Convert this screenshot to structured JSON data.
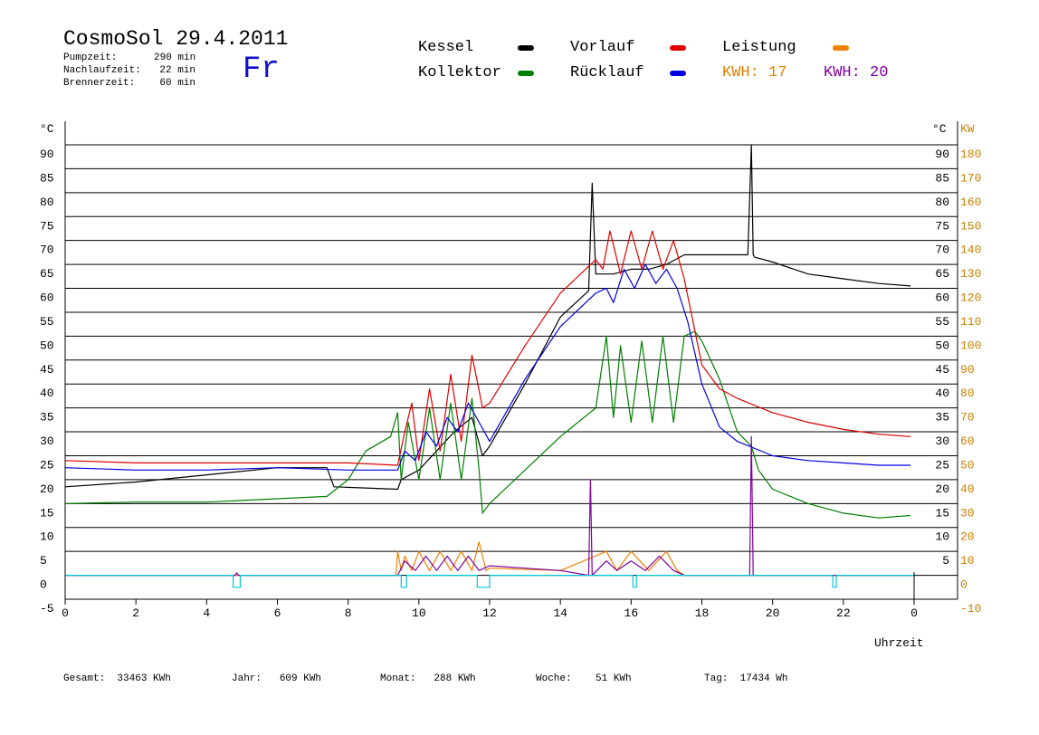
{
  "header": {
    "title": "CosmoSol 29.4.2011",
    "day": "Fr",
    "stats": [
      {
        "label": "Pumpzeit:",
        "value": "290 min"
      },
      {
        "label": "Nachlaufzeit:",
        "value": "22 min"
      },
      {
        "label": "Brennerzeit:",
        "value": "60 min"
      }
    ]
  },
  "legend": {
    "kessel": {
      "label": "Kessel",
      "color": "#000000"
    },
    "kollektor": {
      "label": "Kollektor",
      "color": "#008000"
    },
    "vorlauf": {
      "label": "Vorlauf",
      "color": "#e00000"
    },
    "ruecklauf": {
      "label": "Rücklauf",
      "color": "#0000e0"
    },
    "leistung": {
      "label": "Leistung",
      "color": "#f08000"
    },
    "kwh1": {
      "label": "KWH:",
      "value": "17",
      "color": "#e08000"
    },
    "kwh2": {
      "label": "KWH:",
      "value": "20",
      "color": "#8000a0"
    }
  },
  "footer": {
    "gesamt": {
      "label": "Gesamt:",
      "value": "33463 KWh"
    },
    "jahr": {
      "label": "Jahr:",
      "value": "609 KWh"
    },
    "monat": {
      "label": "Monat:",
      "value": "288 KWh"
    },
    "woche": {
      "label": "Woche:",
      "value": "51 KWh"
    },
    "tag": {
      "label": "Tag:",
      "value": "17434 Wh"
    }
  },
  "chart_data": {
    "type": "line",
    "xlabel": "Uhrzeit",
    "ylabel_left": "°C",
    "ylabel_right_a": "°C",
    "ylabel_right_b": "KW",
    "xlim": [
      0,
      24
    ],
    "ylim": [
      -5,
      90
    ],
    "y2lim": [
      -10,
      180
    ],
    "grid": true,
    "x_ticks": [
      "0",
      "2",
      "4",
      "6",
      "8",
      "10",
      "12",
      "14",
      "16",
      "18",
      "20",
      "22",
      "0"
    ],
    "y_ticks": [
      "-5",
      "0",
      "5",
      "10",
      "15",
      "20",
      "25",
      "30",
      "35",
      "40",
      "45",
      "50",
      "55",
      "60",
      "65",
      "70",
      "75",
      "80",
      "85",
      "90"
    ],
    "y2_ticks": [
      "-10",
      "0",
      "10",
      "20",
      "30",
      "40",
      "50",
      "60",
      "70",
      "80",
      "90",
      "100",
      "110",
      "120",
      "130",
      "140",
      "150",
      "160",
      "170",
      "180"
    ],
    "series": [
      {
        "name": "Kessel",
        "color": "#000000",
        "x": [
          0,
          2,
          4,
          6,
          7.4,
          7.6,
          9.4,
          9.5,
          10,
          10.5,
          11,
          11.5,
          11.8,
          12,
          13,
          14,
          14.8,
          14.9,
          15,
          15.5,
          16,
          16.5,
          17,
          17.5,
          18,
          19,
          19.3,
          19.4,
          19.45,
          19.5,
          20,
          21,
          22,
          23,
          23.9
        ],
        "y": [
          18.5,
          19.5,
          21,
          22.5,
          22.5,
          18.5,
          18,
          20,
          22,
          26,
          30,
          33,
          25,
          27,
          40,
          54,
          59.5,
          82,
          63,
          63,
          64,
          64,
          65,
          67,
          67,
          67,
          67,
          90,
          67,
          66.5,
          65.5,
          63,
          62,
          61,
          60.5
        ]
      },
      {
        "name": "Kollektor",
        "color": "#008000",
        "x": [
          0,
          2,
          4,
          6,
          7.4,
          8,
          8.5,
          9.2,
          9.4,
          9.5,
          9.7,
          10,
          10.3,
          10.6,
          10.9,
          11.2,
          11.5,
          11.7,
          11.8,
          12,
          13,
          14,
          15,
          15.3,
          15.5,
          15.7,
          16,
          16.3,
          16.6,
          16.9,
          17.2,
          17.5,
          17.8,
          18,
          18.5,
          19,
          19.4,
          19.6,
          20,
          21,
          22,
          23,
          23.9
        ],
        "y": [
          15,
          15.3,
          15.3,
          16,
          16.5,
          20,
          26,
          29,
          34,
          20,
          32,
          20,
          35,
          20,
          36,
          20,
          37,
          22,
          13,
          15,
          22,
          29,
          35,
          50,
          33,
          48,
          32,
          49,
          32,
          50,
          32,
          50,
          51,
          49,
          41,
          30,
          27,
          22,
          18,
          15,
          13,
          12,
          12.5
        ]
      },
      {
        "name": "Vorlauf",
        "color": "#e00000",
        "x": [
          0,
          2,
          4,
          6,
          8,
          9.4,
          9.6,
          9.8,
          10,
          10.3,
          10.6,
          10.9,
          11.2,
          11.5,
          11.8,
          12,
          13,
          14,
          15,
          15.2,
          15.4,
          15.7,
          16,
          16.3,
          16.6,
          16.9,
          17.2,
          17.5,
          18,
          18.5,
          19,
          20,
          21,
          22,
          23,
          23.9
        ],
        "y": [
          24,
          23.5,
          23.5,
          23.5,
          23.5,
          23,
          30,
          36,
          24,
          39,
          26,
          42,
          28,
          46,
          35,
          36,
          48,
          59,
          66,
          64,
          72,
          63,
          72,
          64,
          72,
          64,
          70,
          62,
          44,
          39,
          37,
          34,
          32,
          30.5,
          29.5,
          29
        ]
      },
      {
        "name": "Rücklauf",
        "color": "#0000e0",
        "x": [
          0,
          2,
          4,
          6,
          8,
          9.4,
          9.6,
          9.9,
          10.2,
          10.5,
          10.8,
          11.1,
          11.4,
          11.7,
          12,
          13,
          14,
          15,
          15.3,
          15.5,
          15.8,
          16.1,
          16.4,
          16.7,
          17,
          17.3,
          17.6,
          18,
          18.5,
          19,
          20,
          21,
          22,
          23,
          23.9
        ],
        "y": [
          22.5,
          22,
          22,
          22.5,
          22,
          22,
          26,
          24,
          30,
          27,
          33,
          30,
          36,
          32,
          28,
          41,
          52,
          59,
          60,
          57,
          64,
          60,
          65,
          61,
          64,
          60,
          53,
          40,
          31,
          28,
          25,
          24,
          23.5,
          23,
          23
        ]
      },
      {
        "name": "Leistung",
        "color": "#f08000",
        "x": [
          0,
          9.35,
          9.4,
          9.5,
          9.6,
          9.8,
          10,
          10.3,
          10.6,
          10.9,
          11.2,
          11.5,
          11.7,
          11.9,
          12,
          14,
          15.3,
          15.6,
          16,
          16.5,
          17,
          17.3,
          17.5,
          24
        ],
        "y": [
          0,
          0,
          5,
          1,
          4,
          1,
          5,
          1,
          5,
          1,
          5,
          1,
          7,
          1,
          1.5,
          1,
          5,
          1,
          5,
          1,
          5,
          1,
          0,
          0
        ]
      },
      {
        "name": "KWH-Violett",
        "color": "#8000a0",
        "x": [
          0,
          4.8,
          4.85,
          4.9,
          9.4,
          9.6,
          9.9,
          10.2,
          10.5,
          10.8,
          11.1,
          11.4,
          11.7,
          12,
          13,
          14,
          14.8,
          14.85,
          14.9,
          15.3,
          15.6,
          16,
          16.4,
          16.8,
          17.2,
          17.5,
          19.35,
          19.4,
          19.45,
          24
        ],
        "y": [
          0,
          0,
          0.5,
          0,
          0,
          3,
          1,
          4,
          1,
          4,
          1,
          4,
          1,
          2,
          1.5,
          1,
          0,
          20,
          0,
          3,
          1,
          3,
          1,
          4,
          1,
          0,
          0,
          29,
          0,
          0
        ]
      },
      {
        "name": "Pumpe",
        "color": "#00c8d8",
        "x": [
          0,
          4.75,
          4.75,
          4.95,
          4.95,
          9.5,
          9.5,
          9.65,
          9.65,
          11.65,
          11.65,
          12,
          12,
          16.05,
          16.05,
          16.15,
          16.15,
          21.7,
          21.7,
          21.8,
          21.8,
          24
        ],
        "y": [
          0,
          0,
          -2.5,
          -2.5,
          0,
          0,
          -2.5,
          -2.5,
          0,
          0,
          -2.5,
          -2.5,
          0,
          0,
          -2.5,
          -2.5,
          0,
          0,
          -2.5,
          -2.5,
          0,
          0
        ]
      }
    ]
  }
}
